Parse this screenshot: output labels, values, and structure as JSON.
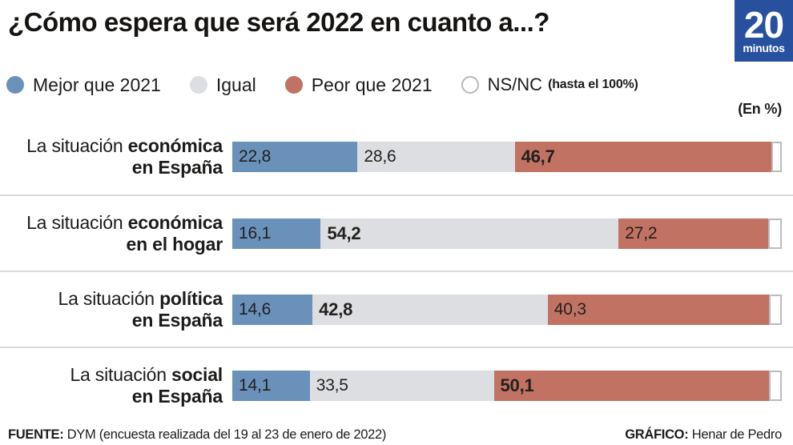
{
  "title": "¿Cómo espera que será 2022 en cuanto a...?",
  "logo": {
    "number": "20",
    "word": "minutos",
    "color": "#27519e"
  },
  "unit_note": "(En %)",
  "colors": {
    "mejor": "#6991ba",
    "igual": "#dcdee1",
    "peor": "#c17263",
    "nsnc": "#ffffff"
  },
  "legend": [
    {
      "label": "Mejor que 2021",
      "color": "#6991ba"
    },
    {
      "label": "Igual",
      "color": "#dcdee1"
    },
    {
      "label": "Peor que 2021",
      "color": "#c17263"
    },
    {
      "label": "NS/NC",
      "note": "(hasta el 100%)",
      "color": "#ffffff",
      "border": "#b5b8ba"
    }
  ],
  "rows": [
    {
      "label_regular": "La situación ",
      "label_bold": "económica",
      "label_line2": "en España",
      "segments": [
        {
          "series": "mejor",
          "text": "22,8",
          "pct": 22.8,
          "bold": false
        },
        {
          "series": "igual",
          "text": "28,6",
          "pct": 28.6,
          "bold": false
        },
        {
          "series": "peor",
          "text": "46,7",
          "pct": 46.7,
          "bold": true
        },
        {
          "series": "nsnc",
          "text": "",
          "pct": 1.9,
          "bold": false
        }
      ]
    },
    {
      "label_regular": "La situación ",
      "label_bold": "económica",
      "label_line2": "en el hogar",
      "segments": [
        {
          "series": "mejor",
          "text": "16,1",
          "pct": 16.1,
          "bold": false
        },
        {
          "series": "igual",
          "text": "54,2",
          "pct": 54.2,
          "bold": true
        },
        {
          "series": "peor",
          "text": "27,2",
          "pct": 27.2,
          "bold": false
        },
        {
          "series": "nsnc",
          "text": "",
          "pct": 2.5,
          "bold": false
        }
      ]
    },
    {
      "label_regular": "La situación ",
      "label_bold": "política",
      "label_line2": "en España",
      "segments": [
        {
          "series": "mejor",
          "text": "14,6",
          "pct": 14.6,
          "bold": false
        },
        {
          "series": "igual",
          "text": "42,8",
          "pct": 42.8,
          "bold": true
        },
        {
          "series": "peor",
          "text": "40,3",
          "pct": 40.3,
          "bold": false
        },
        {
          "series": "nsnc",
          "text": "",
          "pct": 2.3,
          "bold": false
        }
      ]
    },
    {
      "label_regular": "La situación ",
      "label_bold": "social",
      "label_line2": "en España",
      "segments": [
        {
          "series": "mejor",
          "text": "14,1",
          "pct": 14.1,
          "bold": false
        },
        {
          "series": "igual",
          "text": "33,5",
          "pct": 33.5,
          "bold": false
        },
        {
          "series": "peor",
          "text": "50,1",
          "pct": 50.1,
          "bold": true
        },
        {
          "series": "nsnc",
          "text": "",
          "pct": 2.3,
          "bold": false
        }
      ]
    }
  ],
  "footer": {
    "source_bold": "FUENTE:",
    "source_text": " DYM (encuesta realizada del 19 al 23 de enero de 2022)",
    "credit_bold": "GRÁFICO:",
    "credit_text": " Henar de Pedro"
  },
  "chart_data": {
    "type": "bar",
    "orientation": "horizontal",
    "stacked": true,
    "title": "¿Cómo espera que será 2022 en cuanto a...?",
    "unit": "%",
    "xlim": [
      0,
      100
    ],
    "value_labels": true,
    "legend_position": "top",
    "categories": [
      "La situación económica en España",
      "La situación económica en el hogar",
      "La situación política en España",
      "La situación social en España"
    ],
    "series": [
      {
        "name": "Mejor que 2021",
        "color": "#6991ba",
        "values": [
          22.8,
          16.1,
          14.6,
          14.1
        ]
      },
      {
        "name": "Igual",
        "color": "#dcdee1",
        "values": [
          28.6,
          54.2,
          42.8,
          33.5
        ]
      },
      {
        "name": "Peor que 2021",
        "color": "#c17263",
        "values": [
          46.7,
          27.2,
          40.3,
          50.1
        ]
      },
      {
        "name": "NS/NC (hasta el 100%)",
        "color": "#ffffff",
        "values": [
          1.9,
          2.5,
          2.3,
          2.3
        ]
      }
    ]
  }
}
